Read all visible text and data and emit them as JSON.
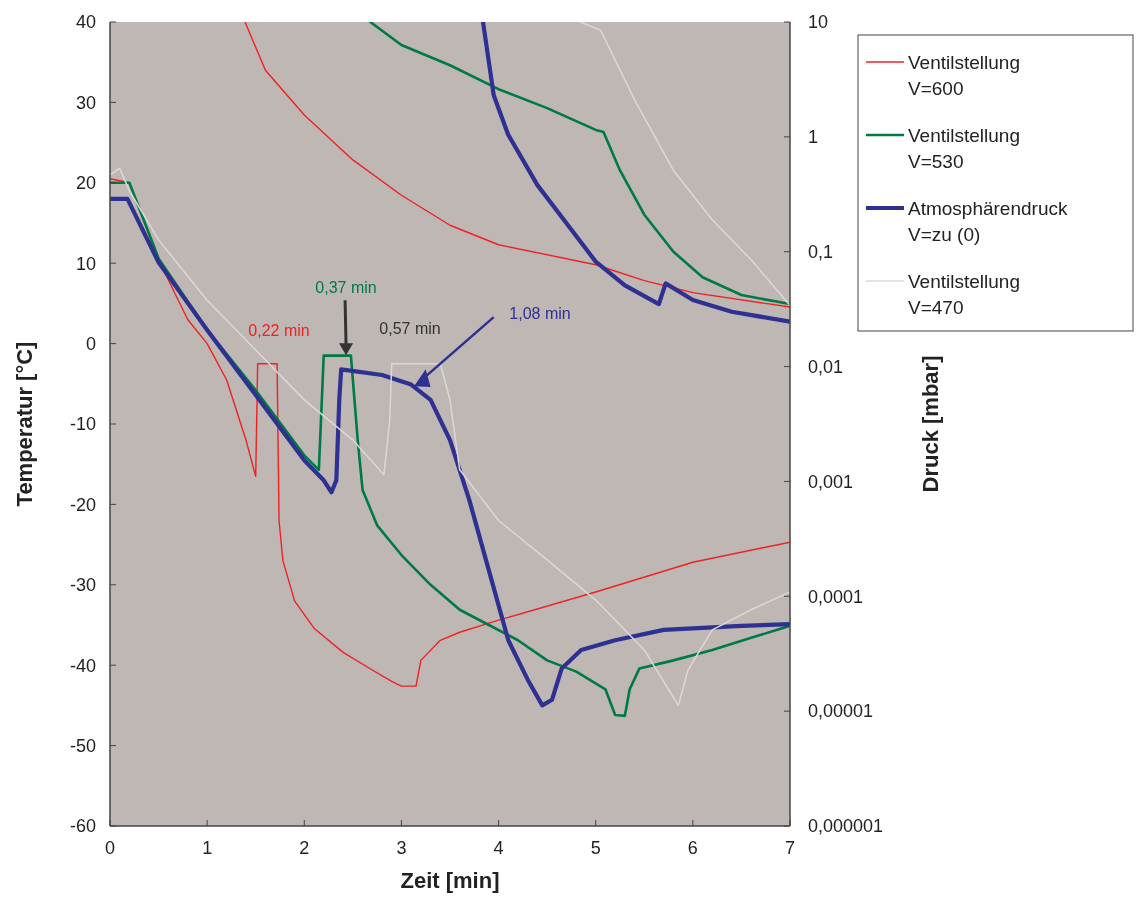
{
  "chart_data": {
    "type": "line",
    "xlabel": "Zeit [min]",
    "ylabel": "Temperatur [°C]",
    "y2label": "Druck [mbar]",
    "xlim": [
      0,
      7
    ],
    "xticks": [
      0,
      1,
      2,
      3,
      4,
      5,
      6,
      7
    ],
    "ylim": [
      -60,
      40
    ],
    "yticks": [
      -60,
      -50,
      -40,
      -30,
      -20,
      -10,
      0,
      10,
      20,
      30,
      40
    ],
    "y2lim": [
      1e-06,
      10
    ],
    "y2ticks": [
      {
        "value": 1e-06,
        "label": "0,000001"
      },
      {
        "value": 1e-05,
        "label": "0,00001"
      },
      {
        "value": 0.0001,
        "label": "0,0001"
      },
      {
        "value": 0.001,
        "label": "0,001"
      },
      {
        "value": 0.01,
        "label": "0,01"
      },
      {
        "value": 0.1,
        "label": "0,1"
      },
      {
        "value": 1,
        "label": "1"
      },
      {
        "value": 10,
        "label": "10"
      }
    ],
    "log": "y2",
    "grid": false,
    "legend": "right",
    "line_style": "solid",
    "series": [
      {
        "name": "Ventilstellung V=600",
        "color": "#ee2222",
        "x": [
          0,
          0.2,
          0.5,
          0.8,
          1.0,
          1.2,
          1.4,
          1.5,
          1.52,
          1.72,
          1.74,
          1.78,
          1.9,
          2.1,
          2.4,
          2.7,
          2.9,
          3.0,
          3.15,
          3.2,
          3.4,
          3.6,
          4,
          5,
          6,
          7
        ],
        "values": [
          20.5,
          20,
          10.4,
          3,
          0,
          -4.5,
          -12,
          -16.5,
          -2.5,
          -2.5,
          -22,
          -27,
          -32,
          -35.4,
          -38.4,
          -40.6,
          -42,
          -42.6,
          -42.6,
          -39.4,
          -36.9,
          -35.9,
          -34.4,
          -30.9,
          -27.2,
          -24.7
        ]
      },
      {
        "name": "Ventilstellung V=530",
        "color": "#007a45",
        "x": [
          0,
          0.2,
          0.5,
          1.0,
          1.5,
          2.0,
          2.15,
          2.2,
          2.48,
          2.55,
          2.6,
          2.75,
          3,
          3.3,
          3.6,
          3.9,
          4.2,
          4.5,
          4.8,
          5.1,
          5.2,
          5.3,
          5.35,
          5.45,
          5.8,
          6.2,
          6.6,
          7
        ],
        "values": [
          20,
          20,
          10.6,
          1.7,
          -5.8,
          -13.9,
          -15.7,
          -1.5,
          -1.5,
          -12,
          -18.2,
          -22.6,
          -26.3,
          -30,
          -33.1,
          -35,
          -36.9,
          -39.4,
          -40.8,
          -43,
          -46.2,
          -46.3,
          -43,
          -40.4,
          -39.4,
          -38.1,
          -36.6,
          -35.1
        ]
      },
      {
        "name": "Atmosphärendruck V=zu (0)",
        "color": "#2e3192",
        "x": [
          0,
          0.18,
          0.5,
          1.0,
          1.5,
          2.0,
          2.2,
          2.28,
          2.33,
          2.36,
          2.38,
          2.8,
          3.1,
          3.3,
          3.5,
          3.7,
          3.9,
          4.1,
          4.3,
          4.45,
          4.55,
          4.65,
          4.85,
          5.2,
          5.7,
          6.5,
          7
        ],
        "values": [
          18,
          18,
          10.1,
          1.7,
          -6.4,
          -14.5,
          -17,
          -18.5,
          -17,
          -7,
          -3.2,
          -3.9,
          -5.1,
          -7,
          -12,
          -19.5,
          -28.2,
          -36.9,
          -41.8,
          -45,
          -44.3,
          -40.4,
          -38.1,
          -36.9,
          -35.6,
          -35.1,
          -34.9
        ]
      },
      {
        "name": "Ventilstellung V=470",
        "color": "#dcd8d6",
        "x": [
          0,
          0.1,
          0.2,
          0.5,
          1.0,
          1.5,
          2.0,
          2.5,
          2.82,
          2.88,
          2.9,
          3.4,
          3.5,
          3.6,
          4.0,
          4.5,
          5.0,
          5.5,
          5.85,
          5.95,
          6.2,
          6.6,
          7
        ],
        "values": [
          21,
          21.8,
          19,
          12.9,
          5.4,
          -0.8,
          -7,
          -12,
          -16.3,
          -9.5,
          -2.5,
          -2.5,
          -7,
          -15.7,
          -22,
          -26.9,
          -31.9,
          -38.1,
          -45,
          -40.6,
          -35.6,
          -33.1,
          -30.9
        ]
      },
      {
        "color": "#ee2222",
        "axis": "y2",
        "x": [
          1.39,
          1.6,
          2,
          2.5,
          3,
          3.5,
          4,
          5,
          5.5,
          6,
          7
        ],
        "values": [
          10,
          3.8,
          1.55,
          0.63,
          0.31,
          0.17,
          0.115,
          0.077,
          0.056,
          0.044,
          0.033
        ]
      },
      {
        "color": "#007a45",
        "axis": "y2",
        "x": [
          2.68,
          3,
          3.5,
          4,
          4.5,
          5,
          5.08,
          5.25,
          5.5,
          5.8,
          6.1,
          6.5,
          7
        ],
        "values": [
          10,
          6.3,
          4.2,
          2.6,
          1.78,
          1.15,
          1.1,
          0.51,
          0.21,
          0.1,
          0.06,
          0.042,
          0.035
        ]
      },
      {
        "color": "#2e3192",
        "axis": "y2",
        "x": [
          3.84,
          3.95,
          4.1,
          4.4,
          4.75,
          5,
          5.3,
          5.65,
          5.72,
          6,
          6.4,
          7
        ],
        "values": [
          10,
          2.3,
          1.04,
          0.38,
          0.155,
          0.082,
          0.051,
          0.035,
          0.053,
          0.038,
          0.03,
          0.0246
        ]
      },
      {
        "color": "#dcd8d6",
        "axis": "y2",
        "x": [
          4.84,
          5.05,
          5.4,
          5.8,
          6.2,
          6.6,
          7
        ],
        "values": [
          10,
          8.5,
          2.1,
          0.51,
          0.19,
          0.085,
          0.034
        ]
      }
    ],
    "annotations": [
      "0,22 min",
      "0,37 min",
      "0,57 min",
      "1,08 min"
    ]
  }
}
